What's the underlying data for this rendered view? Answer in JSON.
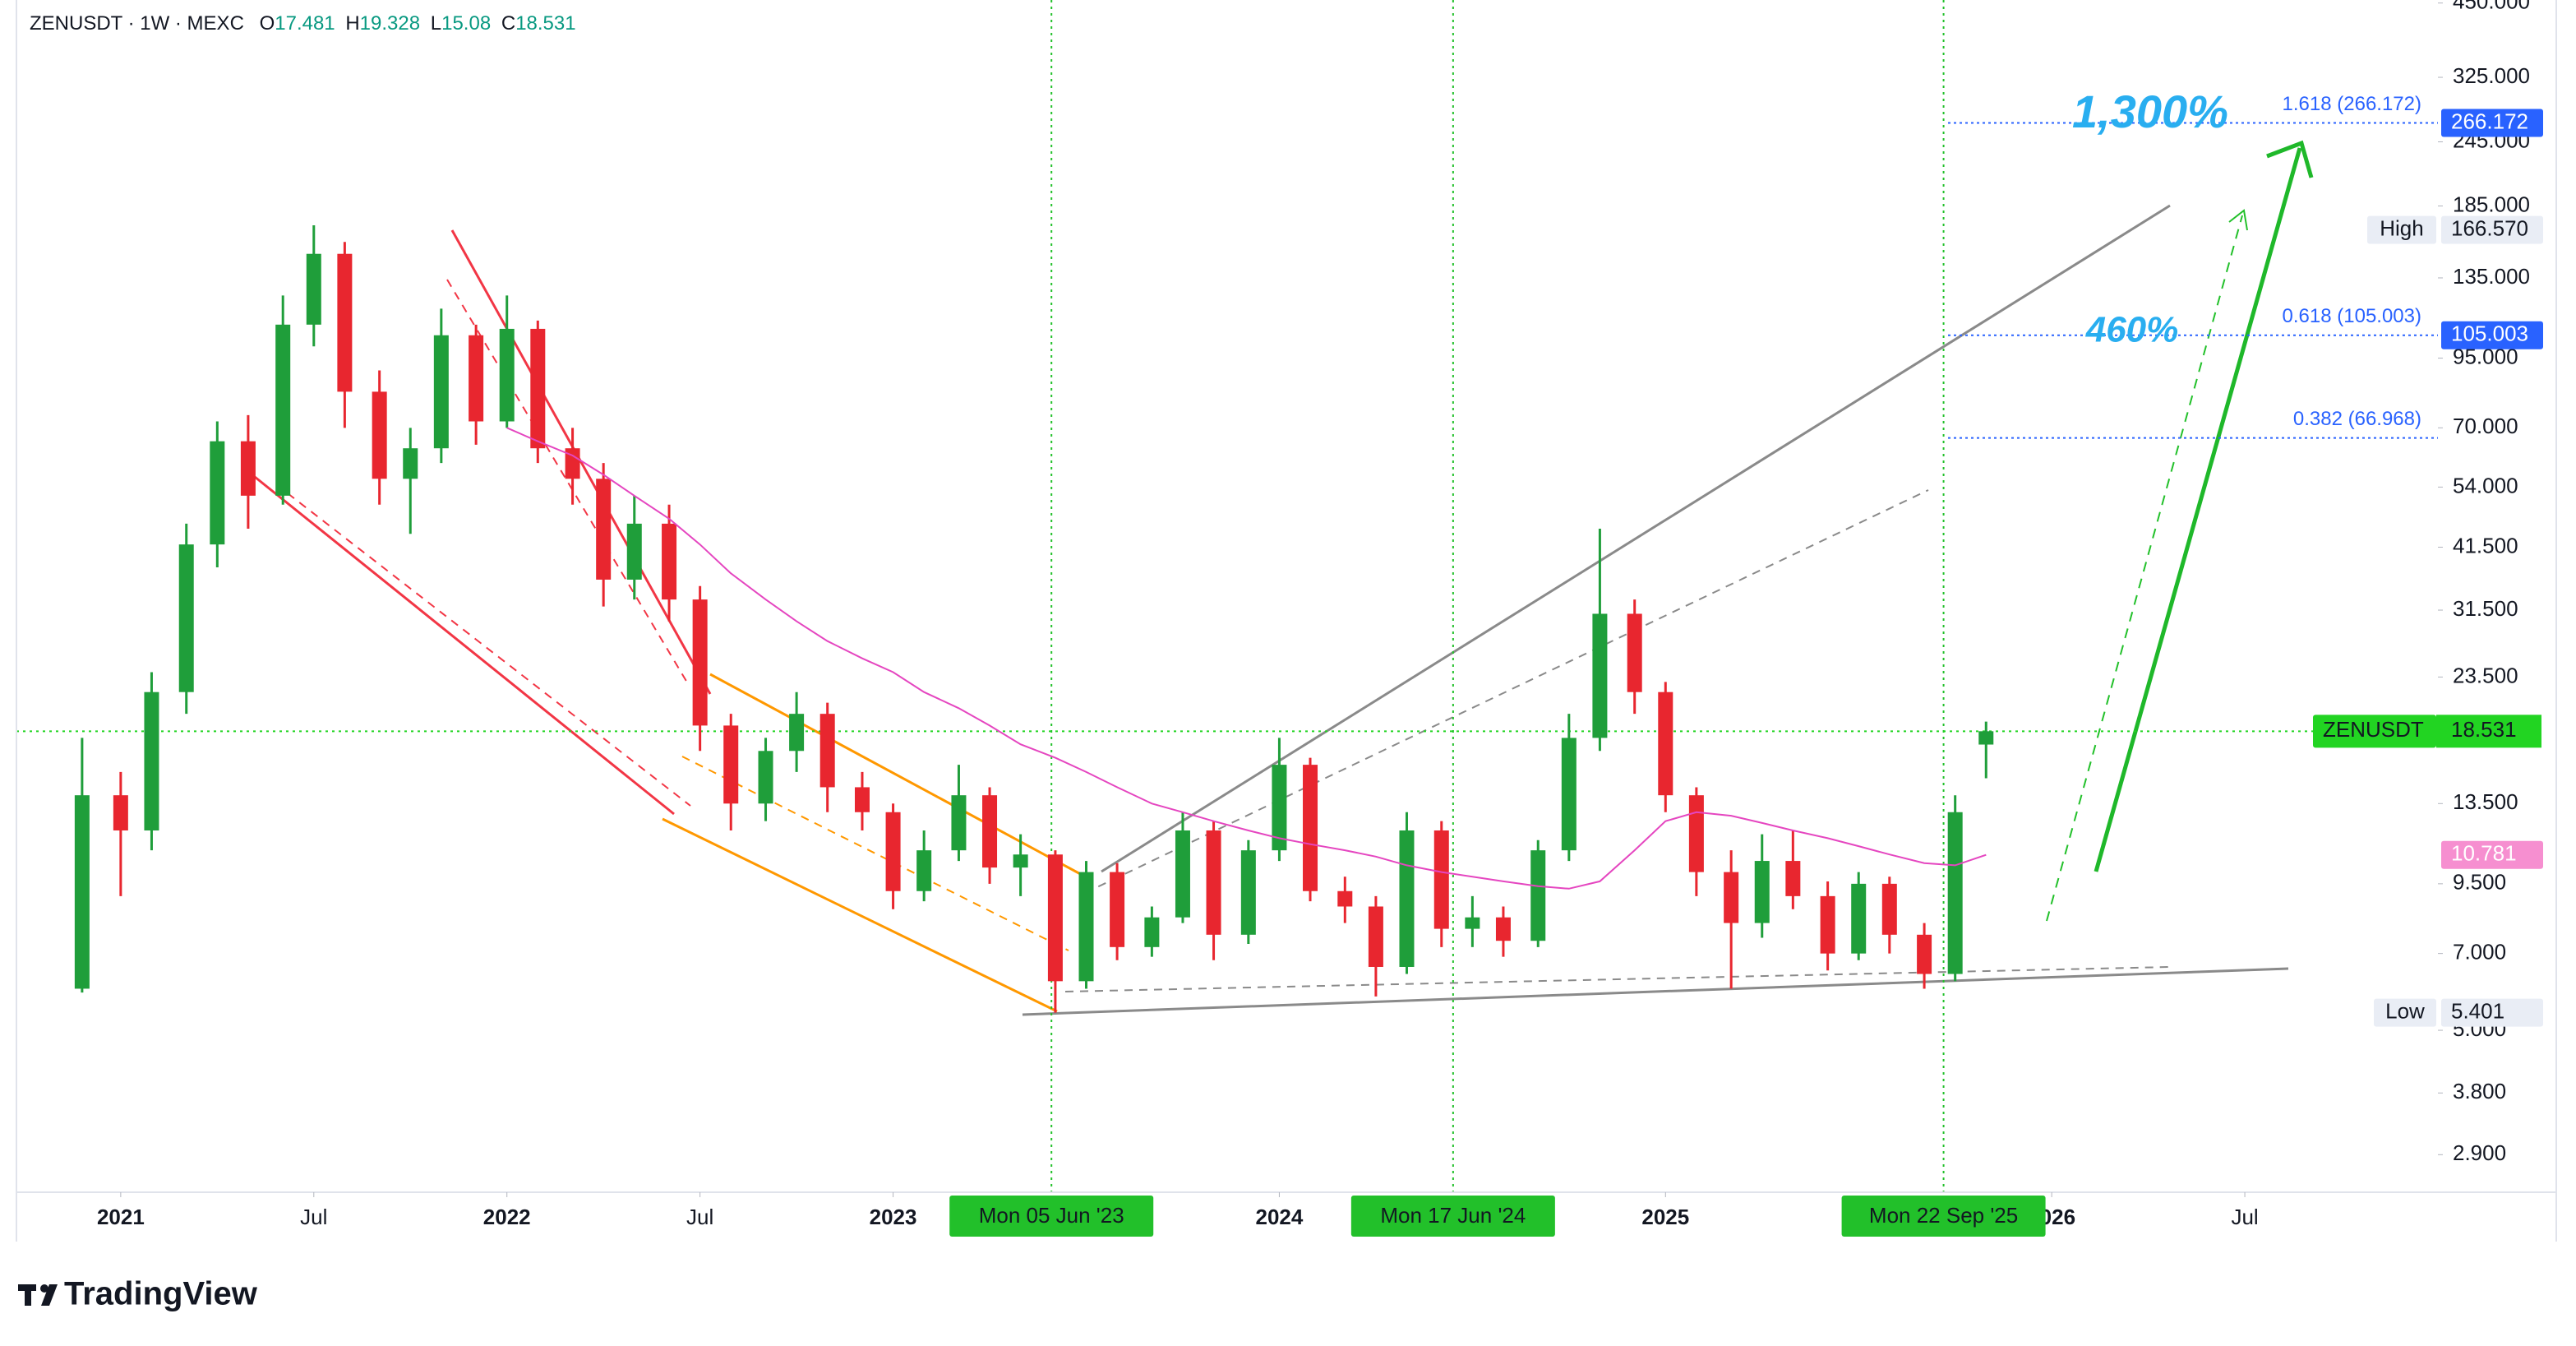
{
  "chart_data": {
    "type": "candlestick",
    "header": {
      "symbol_line": "ZENUSDT · 1W · MEXC",
      "ohlc_prefixes": [
        "O",
        "H",
        "L",
        "C"
      ]
    },
    "brand": "TradingView",
    "log_scale": true,
    "grid": false,
    "up_color": "#1f9e3a",
    "down_color": "#e8262f",
    "xlim": [
      2020.73,
      2027.0
    ],
    "xticks": [
      {
        "value": 2021,
        "label": "2021"
      },
      {
        "value": 2021.5,
        "label": "Jul"
      },
      {
        "value": 2022,
        "label": "2022"
      },
      {
        "value": 2022.5,
        "label": "Jul"
      },
      {
        "value": 2023,
        "label": "2023"
      },
      {
        "value": 2024,
        "label": "2024"
      },
      {
        "value": 2025,
        "label": "2025"
      },
      {
        "value": 2026,
        "label": "2026"
      },
      {
        "value": 2026.5,
        "label": "Jul"
      }
    ],
    "ylim": [
      2.46,
      456
    ],
    "yticks": [
      {
        "value": 450,
        "label": "450.000"
      },
      {
        "value": 325,
        "label": "325.000"
      },
      {
        "value": 245,
        "label": "245.000"
      },
      {
        "value": 185,
        "label": "185.000"
      },
      {
        "value": 135,
        "label": "135.000"
      },
      {
        "value": 95,
        "label": "95.000"
      },
      {
        "value": 70,
        "label": "70.000"
      },
      {
        "value": 54,
        "label": "54.000"
      },
      {
        "value": 41.5,
        "label": "41.500"
      },
      {
        "value": 31.5,
        "label": "31.500"
      },
      {
        "value": 23.5,
        "label": "23.500"
      },
      {
        "value": 13.5,
        "label": "13.500"
      },
      {
        "value": 9.5,
        "label": "9.500"
      },
      {
        "value": 7,
        "label": "7.000"
      },
      {
        "value": 5,
        "label": "5.000"
      },
      {
        "value": 3.8,
        "label": "3.800"
      },
      {
        "value": 2.9,
        "label": "2.900"
      }
    ],
    "x": [
      2020.9,
      2021.0,
      2021.08,
      2021.17,
      2021.25,
      2021.33,
      2021.42,
      2021.5,
      2021.58,
      2021.67,
      2021.75,
      2021.83,
      2021.92,
      2022.0,
      2022.08,
      2022.17,
      2022.25,
      2022.33,
      2022.42,
      2022.5,
      2022.58,
      2022.67,
      2022.75,
      2022.83,
      2022.92,
      2023.0,
      2023.08,
      2023.17,
      2023.25,
      2023.33,
      2023.42,
      2023.5,
      2023.58,
      2023.67,
      2023.75,
      2023.83,
      2023.92,
      2024.0,
      2024.08,
      2024.17,
      2024.25,
      2024.33,
      2024.42,
      2024.5,
      2024.58,
      2024.67,
      2024.75,
      2024.83,
      2024.92,
      2025.0,
      2025.08,
      2025.17,
      2025.25,
      2025.33,
      2025.42,
      2025.5,
      2025.58,
      2025.67,
      2025.75,
      2025.83
    ],
    "open": [
      6,
      14,
      12,
      22,
      42,
      66,
      52,
      110,
      150,
      82,
      56,
      64,
      105,
      72,
      108,
      64,
      56,
      36,
      46,
      33,
      19,
      13.5,
      17,
      20,
      14.5,
      13,
      9.2,
      11,
      14,
      10.2,
      10.8,
      6.2,
      10,
      7.2,
      8.2,
      12,
      7.6,
      11,
      16,
      9.2,
      8.6,
      6.6,
      12,
      7.8,
      8.2,
      7.4,
      11,
      18,
      31,
      22,
      14,
      10,
      8,
      10.5,
      9,
      7,
      9.5,
      7.6,
      6.4,
      17.481
    ],
    "high": [
      18,
      15.5,
      24,
      46,
      72,
      74,
      125,
      170,
      158,
      90,
      70,
      118,
      110,
      125,
      112,
      70,
      60,
      52,
      50,
      35,
      20,
      18,
      22,
      21,
      15.5,
      13.5,
      12,
      16,
      14.5,
      11.8,
      11,
      10.5,
      10.4,
      8.6,
      13,
      12.5,
      11.5,
      18,
      16.5,
      9.8,
      9,
      13,
      12.5,
      9,
      8.6,
      11.5,
      20,
      45,
      33,
      23,
      14.5,
      11,
      11.8,
      12,
      9.6,
      10,
      9.8,
      8,
      14,
      19.328
    ],
    "low": [
      5.9,
      9,
      11,
      20,
      38,
      45,
      50,
      100,
      70,
      50,
      44,
      60,
      65,
      70,
      60,
      50,
      32,
      33,
      30,
      17,
      12,
      12.5,
      15.5,
      13,
      12,
      8.5,
      8.8,
      10.5,
      9.5,
      9,
      5.401,
      6,
      6.8,
      6.9,
      8,
      6.8,
      7.3,
      10.5,
      8.8,
      8,
      5.8,
      6.4,
      7.2,
      7.2,
      6.9,
      7.2,
      10.5,
      17,
      20,
      13,
      9,
      6,
      7.5,
      8.5,
      6.5,
      6.8,
      7,
      6,
      6.2,
      15.08
    ],
    "close": [
      14,
      12,
      22,
      42,
      66,
      52,
      110,
      150,
      82,
      56,
      64,
      105,
      72,
      108,
      64,
      56,
      36,
      46,
      33,
      19,
      13.5,
      17,
      20,
      14.5,
      13,
      9.2,
      11,
      14,
      10.2,
      10.8,
      6.2,
      10,
      7.2,
      8.2,
      12,
      7.6,
      11,
      16,
      9.2,
      8.6,
      6.6,
      12,
      7.8,
      8.2,
      7.4,
      11,
      18,
      31,
      22,
      14,
      10,
      8,
      10.5,
      9,
      7,
      9.5,
      7.6,
      6.4,
      13,
      18.531
    ],
    "moving_average": {
      "color": "#e546c0",
      "values": [
        null,
        null,
        null,
        null,
        null,
        null,
        null,
        null,
        null,
        null,
        null,
        null,
        null,
        70,
        66,
        62,
        57,
        52,
        47,
        42,
        37,
        33,
        30,
        27.5,
        25.5,
        24,
        22,
        20.5,
        19,
        17.5,
        16.5,
        15.5,
        14.5,
        13.5,
        13,
        12.5,
        12,
        11.6,
        11.3,
        11,
        10.7,
        10.3,
        10,
        9.8,
        9.6,
        9.4,
        9.3,
        9.6,
        11,
        12.5,
        13,
        12.8,
        12.4,
        12,
        11.6,
        11.2,
        10.8,
        10.4,
        10.3,
        10.781
      ]
    },
    "fib_levels": [
      {
        "label": "1.618 (266.172)",
        "value": 266.172,
        "badge": true
      },
      {
        "label": "0.618 (105.003)",
        "value": 105.003,
        "badge": true
      },
      {
        "label": "0.382 (66.968)",
        "value": 66.968,
        "badge": false
      }
    ],
    "fib_color": "#2962ff",
    "last_price_badge": {
      "symbol": "ZENUSDT",
      "color": "#22d422"
    },
    "high_badge": {
      "title": "High",
      "value": 166.57,
      "label": "166.570"
    },
    "low_badge": {
      "title": "Low"
    },
    "date_markers": [
      {
        "x": 2023.41,
        "label": "Mon 05 Jun '23"
      },
      {
        "x": 2024.45,
        "label": "Mon 17 Jun '24"
      },
      {
        "x": 2025.72,
        "label": "Mon 22 Sep '25"
      }
    ],
    "annotations": [
      {
        "text": "1,300%"
      },
      {
        "text": "460%"
      }
    ]
  }
}
